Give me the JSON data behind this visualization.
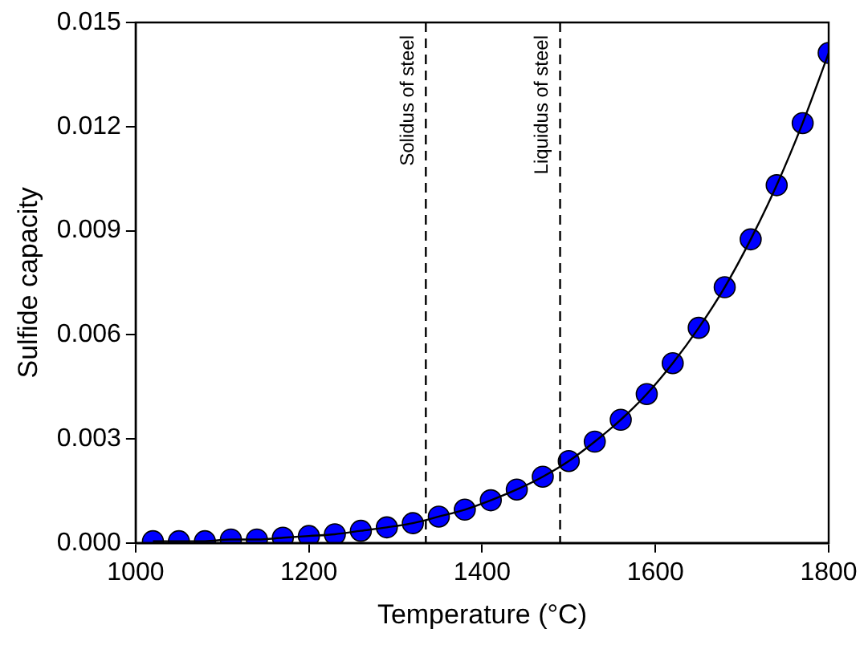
{
  "chart_data": {
    "type": "scatter",
    "xlabel": "Temperature (°C)",
    "ylabel": "Sulfide capacity",
    "x": [
      1020,
      1050,
      1080,
      1110,
      1140,
      1170,
      1200,
      1230,
      1260,
      1290,
      1320,
      1350,
      1380,
      1410,
      1440,
      1470,
      1500,
      1530,
      1560,
      1590,
      1620,
      1650,
      1680,
      1710,
      1740,
      1770,
      1800
    ],
    "series": [
      {
        "type": "line",
        "color": "#000000",
        "marker": "none",
        "values": [
          5e-05,
          5e-05,
          5e-05,
          0.0001,
          0.0001,
          0.00015,
          0.0002,
          0.00025,
          0.00035,
          0.00045,
          0.00057,
          0.00076,
          0.00096,
          0.00123,
          0.00154,
          0.00191,
          0.00236,
          0.00292,
          0.00355,
          0.00429,
          0.00518,
          0.0062,
          0.00737,
          0.00875,
          0.01031,
          0.0121,
          0.01412
        ]
      },
      {
        "color": "#0000ff",
        "marker": "circle",
        "values": [
          5e-05,
          5e-05,
          5e-05,
          0.0001,
          0.0001,
          0.00015,
          0.0002,
          0.00025,
          0.00035,
          0.00045,
          0.00057,
          0.00076,
          0.00096,
          0.00123,
          0.00154,
          0.00191,
          0.00236,
          0.00292,
          0.00355,
          0.00429,
          0.00518,
          0.0062,
          0.00737,
          0.00875,
          0.01031,
          0.0121,
          0.01412
        ]
      }
    ],
    "xlim": [
      1000,
      1800
    ],
    "xticks": [
      1000,
      1200,
      1400,
      1600,
      1800
    ],
    "ylim": [
      0,
      0.015
    ],
    "yticks": [
      {
        "value": 0,
        "label": "0.000"
      },
      {
        "value": 0.003,
        "label": "0.003"
      },
      {
        "value": 0.006,
        "label": "0.006"
      },
      {
        "value": 0.009,
        "label": "0.009"
      },
      {
        "value": 0.012,
        "label": "0.012"
      },
      {
        "value": 0.015,
        "label": "0.015"
      }
    ],
    "ref_lines": [
      {
        "axis": "x",
        "value": 1335,
        "label": "Solidus of steel",
        "color": "#000000",
        "line_style": "dashed"
      },
      {
        "axis": "x",
        "value": 1490,
        "label": "Liquidus of steel",
        "color": "#000000",
        "line_style": "dashed"
      }
    ],
    "grid": false,
    "legend": false
  }
}
